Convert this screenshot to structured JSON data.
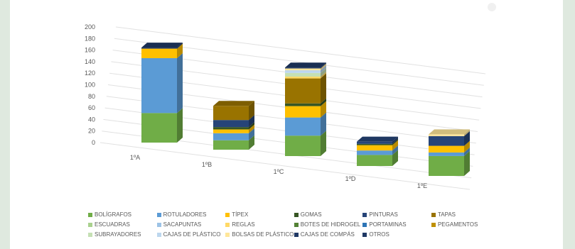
{
  "chart_data": {
    "type": "bar",
    "stacked": true,
    "three_d": true,
    "categories": [
      "1ºA",
      "1ºB",
      "1ºC",
      "1ºD",
      "1ºE"
    ],
    "y_ticks": [
      "0",
      "20",
      "40",
      "60",
      "80",
      "100",
      "120",
      "140",
      "160",
      "180",
      "200"
    ],
    "ylim": [
      0,
      200
    ],
    "grid": true,
    "legend_position": "bottom",
    "series": [
      {
        "name": "BOLÍGRAFOS",
        "color": "#70ad47",
        "values": [
          56,
          20,
          45,
          25,
          45
        ]
      },
      {
        "name": "ROTULADORES",
        "color": "#5b9bd5",
        "values": [
          104,
          15,
          40,
          10,
          8
        ]
      },
      {
        "name": "TÍPEX",
        "color": "#ffc000",
        "values": [
          18,
          8,
          25,
          12,
          15
        ]
      },
      {
        "name": "GOMAS",
        "color": "#375623",
        "values": [
          0,
          5,
          6,
          3,
          0
        ]
      },
      {
        "name": "PINTURAS",
        "color": "#264478",
        "values": [
          0,
          15,
          0,
          5,
          22
        ]
      },
      {
        "name": "TAPAS",
        "color": "#997300",
        "values": [
          0,
          30,
          55,
          0,
          0
        ]
      },
      {
        "name": "ESCUADRAS",
        "color": "#a9d18e",
        "values": [
          0,
          0,
          0,
          0,
          0
        ]
      },
      {
        "name": "SACAPUNTAS",
        "color": "#9dc3e6",
        "values": [
          0,
          0,
          0,
          0,
          0
        ]
      },
      {
        "name": "REGLAS",
        "color": "#ffd966",
        "values": [
          0,
          0,
          4,
          0,
          0
        ]
      },
      {
        "name": "BOTES DE HIDROGEL",
        "color": "#548235",
        "values": [
          0,
          0,
          0,
          0,
          0
        ]
      },
      {
        "name": "PORTAMINAS",
        "color": "#2e75b6",
        "values": [
          0,
          0,
          0,
          0,
          0
        ]
      },
      {
        "name": "PEGAMENTOS",
        "color": "#bf9000",
        "values": [
          0,
          0,
          0,
          0,
          0
        ]
      },
      {
        "name": "SUBRAYADORES",
        "color": "#c5e0b4",
        "values": [
          0,
          0,
          8,
          0,
          0
        ]
      },
      {
        "name": "CAJAS DE PLÁSTICO",
        "color": "#bdd7ee",
        "values": [
          0,
          0,
          6,
          0,
          0
        ]
      },
      {
        "name": "BOLSAS DE PLÁSTICO",
        "color": "#ffe699",
        "values": [
          0,
          0,
          4,
          0,
          4
        ]
      },
      {
        "name": "CAJAS DE COMPÁS",
        "color": "#203864",
        "values": [
          0,
          0,
          0,
          0,
          0
        ]
      },
      {
        "name": "OTROS",
        "color": "#1f3864",
        "values": [
          2,
          0,
          2,
          0,
          0
        ]
      }
    ]
  }
}
